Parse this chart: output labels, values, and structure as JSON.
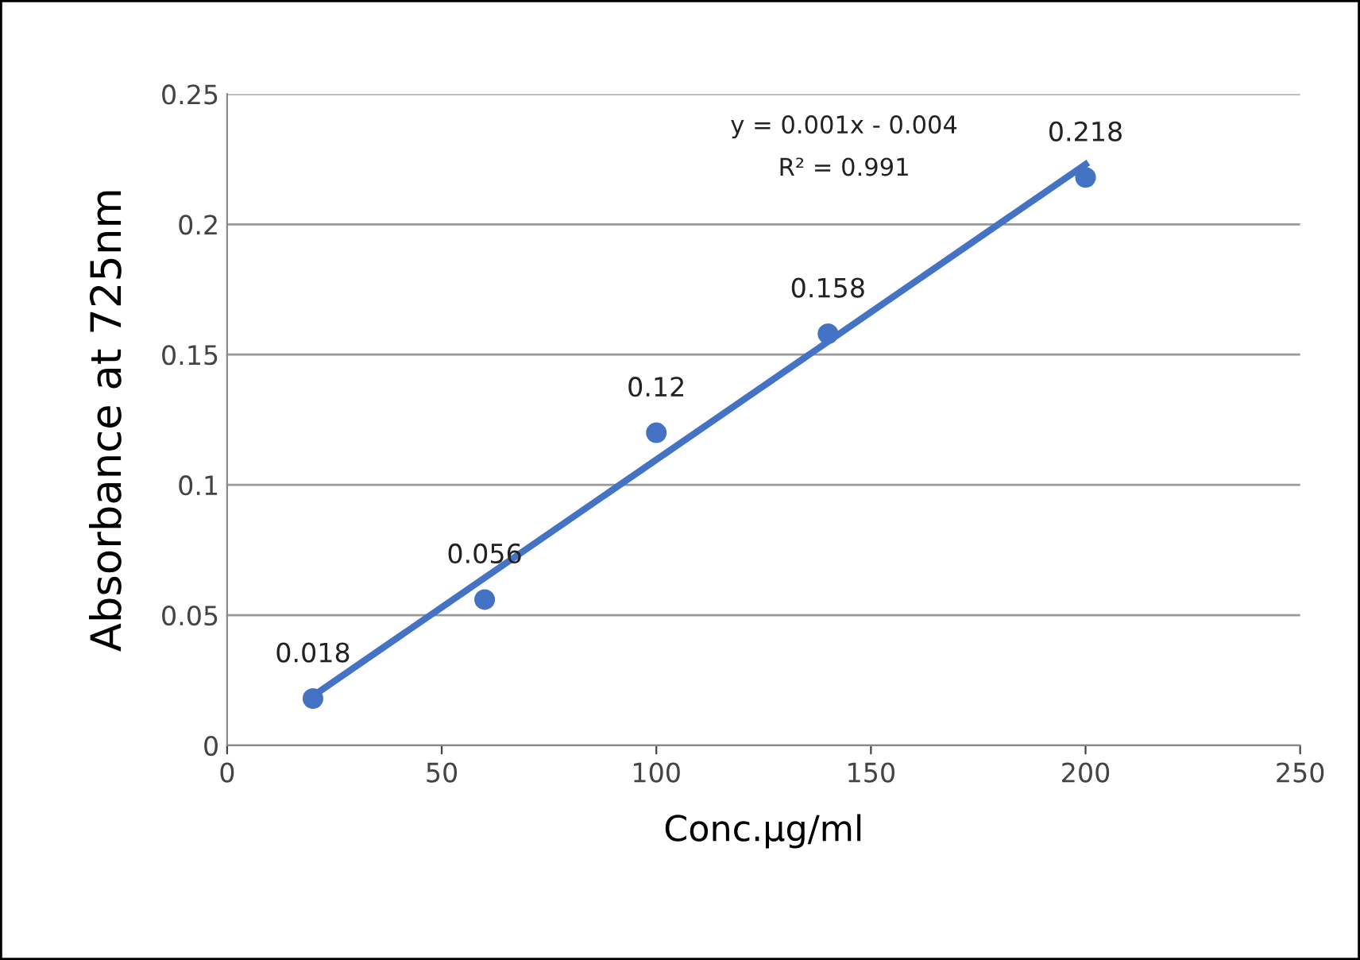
{
  "chart_data": {
    "type": "scatter",
    "xlabel": "Conc.µg/ml",
    "ylabel": "Absorbance at 725nm",
    "series": [
      {
        "color": "#4472c4",
        "x": [
          20,
          60,
          100,
          140,
          200
        ],
        "values": [
          0.018,
          0.056,
          0.12,
          0.158,
          0.218
        ],
        "marker": "circle",
        "data_labels": true
      },
      {
        "type": "line",
        "color": "#4472c4",
        "x": [
          20,
          200
        ],
        "values": [
          0.019,
          0.223
        ],
        "line_style": "solid"
      }
    ],
    "annotations": [
      "y = 0.001x - 0.004",
      "R² = 0.991"
    ],
    "xlim": [
      0,
      250
    ],
    "xticks": [
      0,
      50,
      100,
      150,
      200,
      250
    ],
    "ylim": [
      0,
      0.25
    ],
    "yticks": [
      0,
      0.05,
      0.1,
      0.15,
      0.2,
      0.25
    ],
    "grid": "y",
    "legend": false
  }
}
